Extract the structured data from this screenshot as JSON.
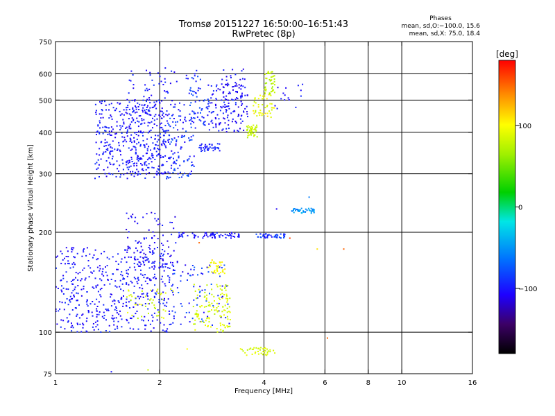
{
  "chart_data": {
    "type": "scatter",
    "title": "Tromsø 20151227 16:50:00–16:51:43",
    "subtitle": "RwPretec (8p)",
    "xlabel": "Frequency [MHz]",
    "ylabel": "Stationary phase Virtual Height [km]",
    "x_scale": "log",
    "y_scale": "log",
    "xlim": [
      1,
      16
    ],
    "ylim": [
      75,
      750
    ],
    "x_ticks": [
      1,
      2,
      4,
      6,
      8,
      10,
      16
    ],
    "y_ticks": [
      75,
      100,
      200,
      300,
      400,
      500,
      600,
      750
    ],
    "x_gridlines": [
      2,
      4,
      6,
      8,
      10
    ],
    "y_gridlines": [
      100,
      200,
      300,
      400,
      500,
      600
    ],
    "grid": true,
    "legend": {
      "title": "Phases",
      "line1": "mean, sd,O:−100.0, 15.6",
      "line2": "mean, sd,X:  75.0, 18.4"
    },
    "colorbar": {
      "label": "[deg]",
      "ticks": [
        100,
        0,
        -100
      ],
      "tick_labels": [
        "100",
        "0",
        "−100"
      ],
      "range": [
        -180,
        180
      ]
    },
    "clusters": [
      {
        "xmin": 1.3,
        "xmax": 2.1,
        "ymin": 290,
        "ymax": 500,
        "n": 380,
        "phase": -100,
        "spread": 12
      },
      {
        "xmin": 1.6,
        "xmax": 2.3,
        "ymin": 300,
        "ymax": 630,
        "n": 170,
        "phase": -100,
        "spread": 12
      },
      {
        "xmin": 2.1,
        "xmax": 2.55,
        "ymin": 290,
        "ymax": 450,
        "n": 90,
        "phase": -90,
        "spread": 20
      },
      {
        "xmin": 2.35,
        "xmax": 2.7,
        "ymin": 420,
        "ymax": 620,
        "n": 60,
        "phase": -90,
        "spread": 15
      },
      {
        "xmin": 2.6,
        "xmax": 3.0,
        "ymin": 350,
        "ymax": 370,
        "n": 40,
        "phase": -95,
        "spread": 10
      },
      {
        "xmin": 2.7,
        "xmax": 3.6,
        "ymin": 400,
        "ymax": 560,
        "n": 120,
        "phase": -100,
        "spread": 15
      },
      {
        "xmin": 3.0,
        "xmax": 3.6,
        "ymin": 430,
        "ymax": 620,
        "n": 60,
        "phase": -105,
        "spread": 12
      },
      {
        "xmin": 3.55,
        "xmax": 3.85,
        "ymin": 385,
        "ymax": 420,
        "n": 45,
        "phase": 80,
        "spread": 15
      },
      {
        "xmin": 3.7,
        "xmax": 4.3,
        "ymin": 440,
        "ymax": 520,
        "n": 45,
        "phase": 95,
        "spread": 18
      },
      {
        "xmin": 4.0,
        "xmax": 4.3,
        "ymin": 520,
        "ymax": 610,
        "n": 45,
        "phase": 75,
        "spread": 12
      },
      {
        "xmin": 4.3,
        "xmax": 5.2,
        "ymin": 470,
        "ymax": 560,
        "n": 15,
        "phase": -100,
        "spread": 10
      },
      {
        "xmin": 1.0,
        "xmax": 2.2,
        "ymin": 100,
        "ymax": 180,
        "n": 480,
        "phase": -100,
        "spread": 12
      },
      {
        "xmin": 1.6,
        "xmax": 2.25,
        "ymin": 140,
        "ymax": 230,
        "n": 110,
        "phase": -105,
        "spread": 12
      },
      {
        "xmin": 1.6,
        "xmax": 2.2,
        "ymin": 110,
        "ymax": 135,
        "n": 45,
        "phase": 85,
        "spread": 15
      },
      {
        "xmin": 2.2,
        "xmax": 3.2,
        "ymin": 105,
        "ymax": 160,
        "n": 70,
        "phase": -90,
        "spread": 25
      },
      {
        "xmin": 2.5,
        "xmax": 3.2,
        "ymin": 100,
        "ymax": 140,
        "n": 120,
        "phase": 85,
        "spread": 15
      },
      {
        "xmin": 2.75,
        "xmax": 3.1,
        "ymin": 150,
        "ymax": 165,
        "n": 35,
        "phase": 100,
        "spread": 12
      },
      {
        "xmin": 2.25,
        "xmax": 3.4,
        "ymin": 192,
        "ymax": 200,
        "n": 70,
        "phase": -100,
        "spread": 10
      },
      {
        "xmin": 3.8,
        "xmax": 4.6,
        "ymin": 192,
        "ymax": 198,
        "n": 45,
        "phase": -90,
        "spread": 15
      },
      {
        "xmin": 4.8,
        "xmax": 5.6,
        "ymin": 228,
        "ymax": 236,
        "n": 40,
        "phase": -50,
        "spread": 15
      },
      {
        "xmin": 3.4,
        "xmax": 4.3,
        "ymin": 85,
        "ymax": 90,
        "n": 40,
        "phase": 85,
        "spread": 12
      }
    ],
    "isolated_points": [
      {
        "x": 6.8,
        "y": 178,
        "phase": 150
      },
      {
        "x": 5.7,
        "y": 178,
        "phase": 110
      },
      {
        "x": 6.1,
        "y": 96,
        "phase": 150
      },
      {
        "x": 2.4,
        "y": 89,
        "phase": 100
      },
      {
        "x": 1.45,
        "y": 76,
        "phase": -100
      },
      {
        "x": 1.85,
        "y": 77,
        "phase": 80
      },
      {
        "x": 5.4,
        "y": 255,
        "phase": -60
      },
      {
        "x": 4.35,
        "y": 235,
        "phase": -110
      },
      {
        "x": 4.75,
        "y": 192,
        "phase": 160
      },
      {
        "x": 2.6,
        "y": 186,
        "phase": 150
      }
    ]
  }
}
